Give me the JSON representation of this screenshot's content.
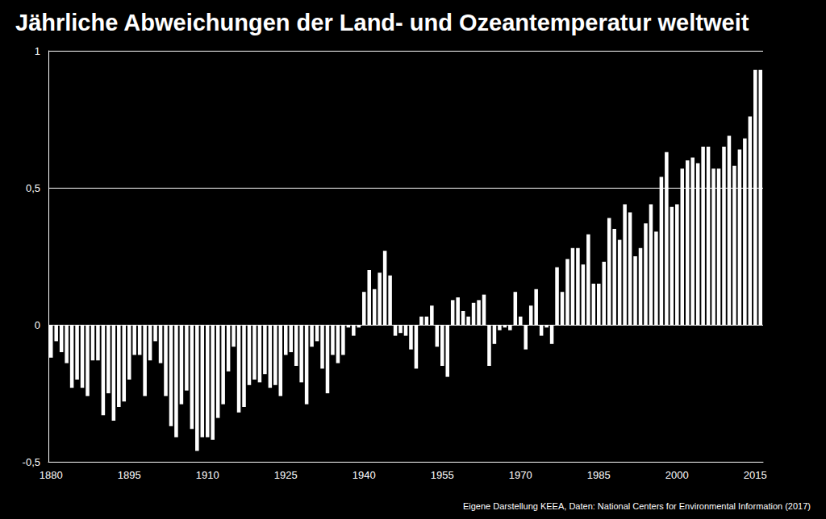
{
  "chart_data": {
    "type": "bar",
    "title": "Jährliche Abweichungen der Land- und Ozeantemperatur weltweit",
    "source": "Eigene Darstellung KEEA, Daten: National Centers for Environmental Information (2017)",
    "categories": [
      "1880",
      null,
      null,
      null,
      null,
      null,
      null,
      null,
      null,
      null,
      null,
      null,
      null,
      null,
      null,
      "1895",
      null,
      null,
      null,
      null,
      null,
      null,
      null,
      null,
      null,
      null,
      null,
      null,
      null,
      null,
      "1910",
      null,
      null,
      null,
      null,
      null,
      null,
      null,
      null,
      null,
      null,
      null,
      null,
      null,
      null,
      "1925",
      null,
      null,
      null,
      null,
      null,
      null,
      null,
      null,
      null,
      null,
      null,
      null,
      null,
      null,
      "1940",
      null,
      null,
      null,
      null,
      null,
      null,
      null,
      null,
      null,
      null,
      null,
      null,
      null,
      null,
      "1955",
      null,
      null,
      null,
      null,
      null,
      null,
      null,
      null,
      null,
      null,
      null,
      null,
      null,
      null,
      "1970",
      null,
      null,
      null,
      null,
      null,
      null,
      null,
      null,
      null,
      null,
      null,
      null,
      null,
      null,
      "1985",
      null,
      null,
      null,
      null,
      null,
      null,
      null,
      null,
      null,
      null,
      null,
      null,
      null,
      null,
      "2000",
      null,
      null,
      null,
      null,
      null,
      null,
      null,
      null,
      null,
      null,
      null,
      null,
      null,
      null,
      "2015",
      null
    ],
    "values": [
      -0.12,
      -0.06,
      -0.1,
      -0.14,
      -0.23,
      -0.2,
      -0.23,
      -0.26,
      -0.13,
      -0.13,
      -0.33,
      -0.25,
      -0.35,
      -0.3,
      -0.28,
      -0.2,
      -0.11,
      -0.11,
      -0.26,
      -0.13,
      -0.06,
      -0.14,
      -0.26,
      -0.37,
      -0.41,
      -0.29,
      -0.24,
      -0.38,
      -0.46,
      -0.41,
      -0.41,
      -0.42,
      -0.34,
      -0.29,
      -0.17,
      -0.08,
      -0.32,
      -0.3,
      -0.22,
      -0.2,
      -0.21,
      -0.18,
      -0.23,
      -0.22,
      -0.26,
      -0.11,
      -0.1,
      -0.15,
      -0.21,
      -0.29,
      -0.08,
      -0.06,
      -0.16,
      -0.25,
      -0.11,
      -0.14,
      -0.11,
      -0.01,
      -0.04,
      -0.01,
      0.12,
      0.2,
      0.13,
      0.19,
      0.27,
      0.18,
      -0.04,
      -0.03,
      -0.04,
      -0.09,
      -0.16,
      0.03,
      0.03,
      0.07,
      -0.08,
      -0.15,
      -0.19,
      0.09,
      0.1,
      0.05,
      0.03,
      0.08,
      0.09,
      0.11,
      -0.15,
      -0.07,
      -0.02,
      -0.01,
      -0.02,
      0.12,
      0.03,
      -0.09,
      0.07,
      0.13,
      -0.04,
      -0.01,
      -0.07,
      0.21,
      0.12,
      0.24,
      0.28,
      0.28,
      0.22,
      0.33,
      0.15,
      0.15,
      0.23,
      0.39,
      0.35,
      0.31,
      0.44,
      0.41,
      0.25,
      0.28,
      0.37,
      0.44,
      0.34,
      0.54,
      0.63,
      0.43,
      0.44,
      0.57,
      0.6,
      0.61,
      0.59,
      0.65,
      0.65,
      0.57,
      0.57,
      0.65,
      0.69,
      0.58,
      0.64,
      0.68,
      0.76,
      0.93,
      0.93
    ],
    "color": "#ffffff",
    "ylim": [
      -0.5,
      1
    ],
    "yticks": [
      {
        "value": -0.5,
        "label": "-0,5"
      },
      0,
      {
        "value": 0.5,
        "label": "0,5"
      },
      1
    ],
    "grid": true
  }
}
